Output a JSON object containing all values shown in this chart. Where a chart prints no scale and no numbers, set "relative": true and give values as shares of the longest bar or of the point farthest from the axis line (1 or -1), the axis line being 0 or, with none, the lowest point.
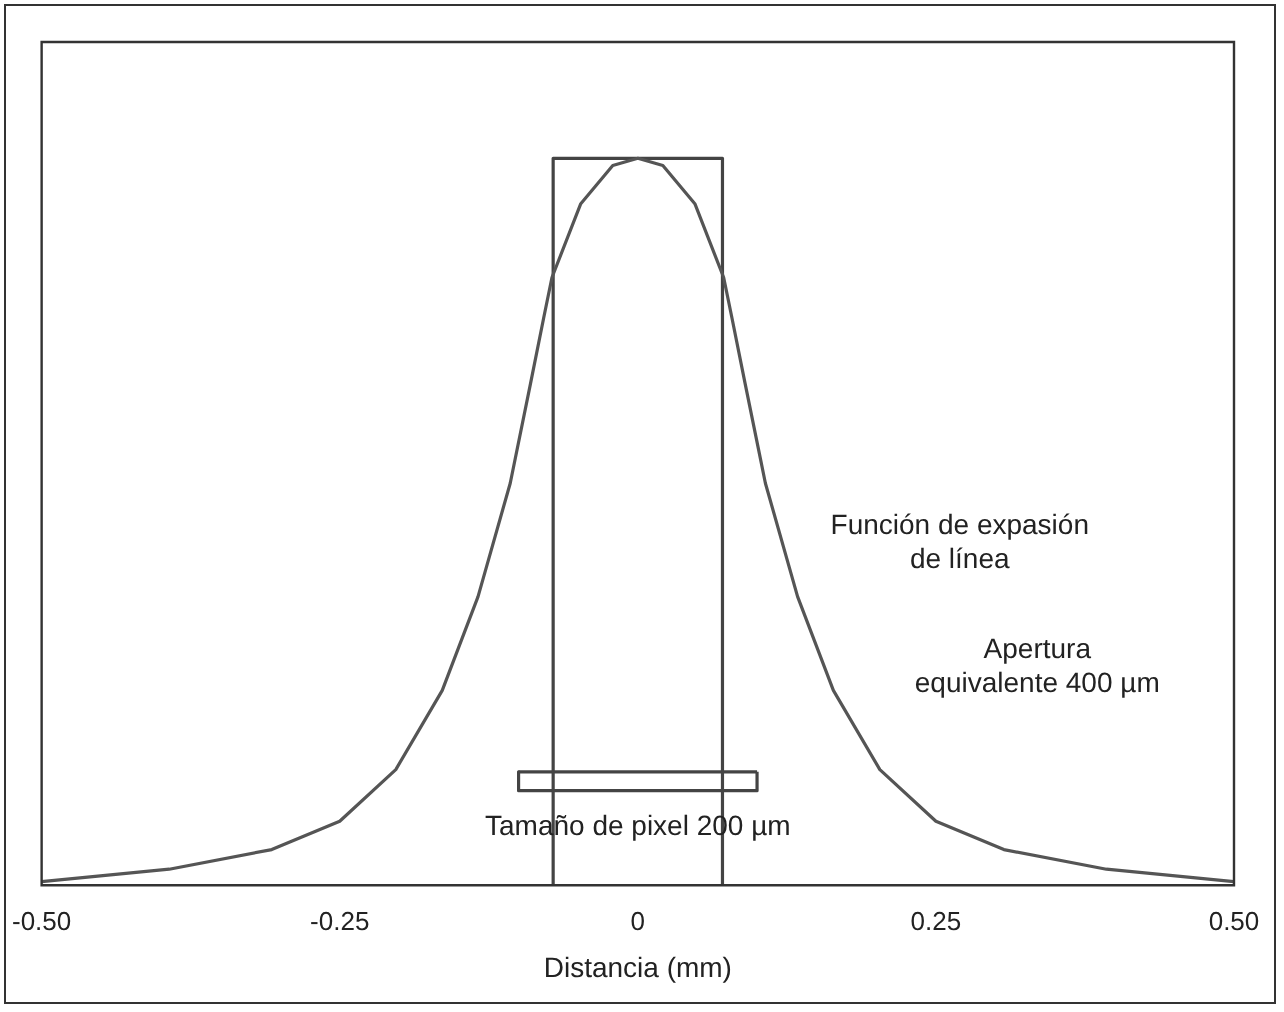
{
  "chart_data": {
    "type": "line",
    "relative": true,
    "xlabel": "Distancia (mm)",
    "xlim": [
      -0.5,
      0.5
    ],
    "xticks": [
      {
        "value": -0.5,
        "label": "-0.50"
      },
      {
        "value": -0.25,
        "label": "-0.25"
      },
      0,
      0.25,
      {
        "value": 0.5,
        "label": "0.50"
      }
    ],
    "series": [
      {
        "color": "#555555",
        "x": [
          -0.5,
          -0.393,
          -0.307,
          -0.25,
          -0.203,
          -0.164,
          -0.134,
          -0.107,
          -0.09,
          -0.079,
          -0.072,
          -0.048,
          -0.021,
          0,
          0.021,
          0.048,
          0.072,
          0.079,
          0.09,
          0.107,
          0.134,
          0.164,
          0.203,
          0.25,
          0.307,
          0.393,
          0.5
        ],
        "values": [
          0.005,
          0.022,
          0.049,
          0.088,
          0.159,
          0.268,
          0.397,
          0.553,
          0.69,
          0.78,
          0.836,
          0.937,
          0.99,
          1,
          0.99,
          0.937,
          0.836,
          0.78,
          0.69,
          0.553,
          0.397,
          0.268,
          0.159,
          0.088,
          0.049,
          0.022,
          0.005
        ]
      },
      {
        "color": "#444444",
        "x": [
          -0.071,
          -0.071,
          0.071,
          0.071
        ],
        "values": [
          0,
          1,
          1,
          0
        ]
      },
      {
        "color": "#444444",
        "x": [
          -0.1,
          -0.1,
          0.1,
          0.1
        ],
        "values": [
          0.156,
          0.13,
          0.13,
          0.156
        ]
      },
      {
        "color": "#444444",
        "x": [
          -0.1,
          0.1
        ],
        "values": [
          0.156,
          0.156
        ]
      }
    ],
    "annotations": [
      "Función de expasión\nde línea",
      "Apertura\nequivalente 400 µm",
      "Tamaño de pixel 200 µm"
    ],
    "grid": false,
    "legend": false,
    "marker": "none",
    "line_style": "solid"
  }
}
